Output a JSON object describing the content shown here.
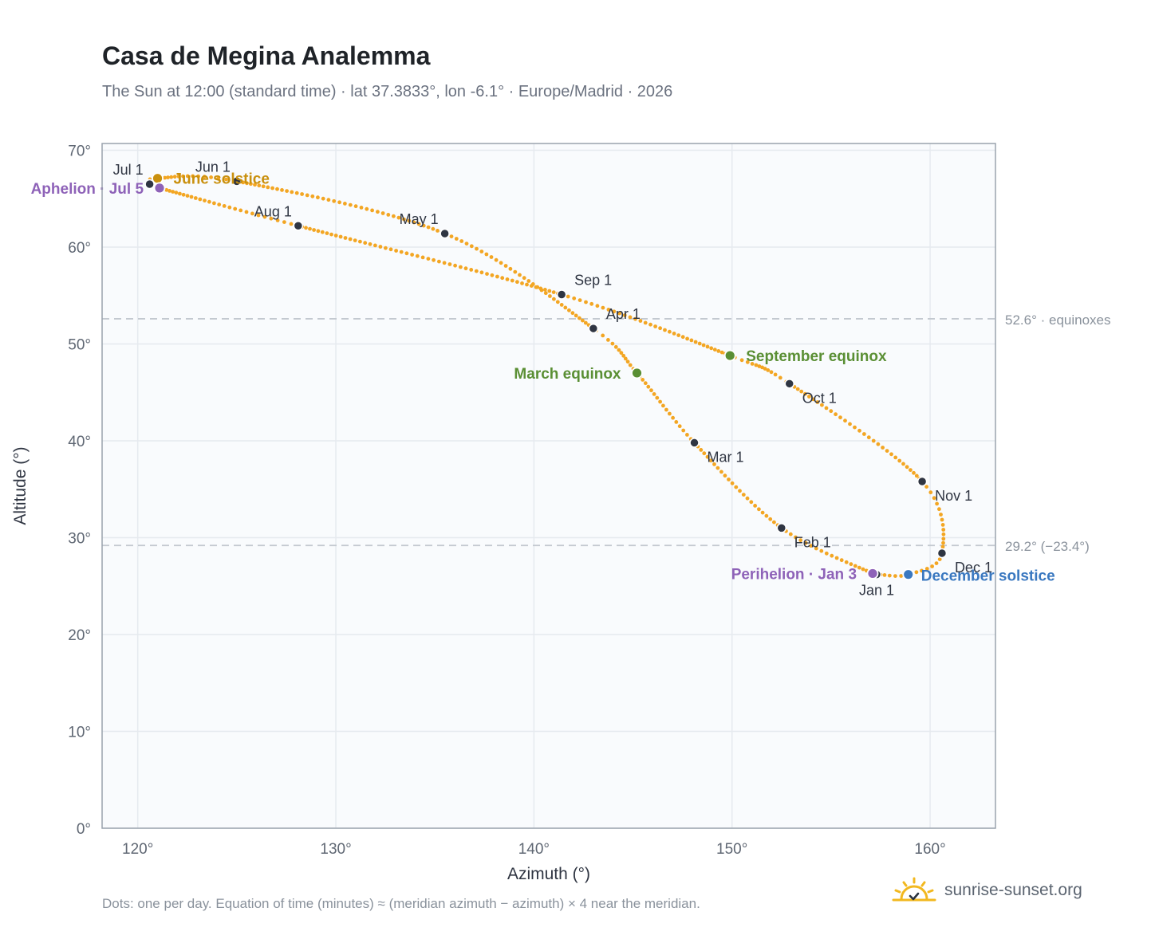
{
  "header": {
    "title": "Casa de Megina Analemma",
    "subtitle": "The Sun at 12:00 (standard time) · lat 37.3833°, lon -6.1° · Europe/Madrid · 2026"
  },
  "footer": {
    "note": "Dots: one per day. Equation of time (minutes) ≈ (meridian azimuth − azimuth) × 4 near the meridian.",
    "brand": "sunrise-sunset.org",
    "brand_icon": "sun-icon"
  },
  "colors": {
    "curve": "#f3a623",
    "month_dot": "#2f3542",
    "equinox": "#5a8f34",
    "june_solstice": "#c9900e",
    "december_solstice": "#3a78c0",
    "apsis": "#8e62b8",
    "reference_line": "#c3c9d0",
    "plot_background": "#f9fbfd",
    "grid": "#e6eaef"
  },
  "chart_data": {
    "type": "scatter",
    "xlabel": "Azimuth (°)",
    "ylabel": "Altitude (°)",
    "xlim": [
      118.2,
      163.3
    ],
    "ylim": [
      0,
      70.7
    ],
    "xticks": [
      120,
      130,
      140,
      150,
      160
    ],
    "yticks": [
      0,
      10,
      20,
      30,
      40,
      50,
      60,
      70
    ],
    "tick_suffix": "°",
    "grid": true,
    "keypoints": [
      {
        "date": "Jan 1",
        "az": 157.3,
        "alt": 26.2
      },
      {
        "date": "Jan 3",
        "az": 157.1,
        "alt": 26.3
      },
      {
        "date": "Feb 1",
        "az": 152.5,
        "alt": 31.0
      },
      {
        "date": "Mar 1",
        "az": 148.1,
        "alt": 39.8
      },
      {
        "date": "Mar 20",
        "az": 145.2,
        "alt": 47.0
      },
      {
        "date": "Apr 1",
        "az": 143.0,
        "alt": 51.6
      },
      {
        "date": "May 1",
        "az": 135.5,
        "alt": 61.4
      },
      {
        "date": "Jun 1",
        "az": 125.0,
        "alt": 66.8
      },
      {
        "date": "Jun 21",
        "az": 121.0,
        "alt": 67.1
      },
      {
        "date": "Jul 1",
        "az": 120.6,
        "alt": 66.5
      },
      {
        "date": "Jul 5",
        "az": 121.1,
        "alt": 66.1
      },
      {
        "date": "Aug 1",
        "az": 128.1,
        "alt": 62.2
      },
      {
        "date": "Sep 1",
        "az": 141.4,
        "alt": 55.1
      },
      {
        "date": "Sep 23",
        "az": 149.9,
        "alt": 48.8
      },
      {
        "date": "Oct 1",
        "az": 152.9,
        "alt": 45.9
      },
      {
        "date": "Nov 1",
        "az": 159.6,
        "alt": 35.8
      },
      {
        "date": "Dec 1",
        "az": 160.6,
        "alt": 28.4
      },
      {
        "date": "Dec 21",
        "az": 158.9,
        "alt": 26.2
      },
      {
        "date": "Dec 31",
        "az": 157.4,
        "alt": 26.2
      }
    ],
    "month_markers": [
      {
        "label": "Jan 1",
        "az": 157.3,
        "alt": 26.2,
        "anchor": "below"
      },
      {
        "label": "Feb 1",
        "az": 152.5,
        "alt": 31.0,
        "anchor": "right-below"
      },
      {
        "label": "Mar 1",
        "az": 148.1,
        "alt": 39.8,
        "anchor": "right-below"
      },
      {
        "label": "Apr 1",
        "az": 143.0,
        "alt": 51.6,
        "anchor": "right-above"
      },
      {
        "label": "May 1",
        "az": 135.5,
        "alt": 61.4,
        "anchor": "left-above"
      },
      {
        "label": "Jun 1",
        "az": 125.0,
        "alt": 66.8,
        "anchor": "left-above"
      },
      {
        "label": "Jul 1",
        "az": 120.6,
        "alt": 66.5,
        "anchor": "left-above"
      },
      {
        "label": "Aug 1",
        "az": 128.1,
        "alt": 62.2,
        "anchor": "left-above"
      },
      {
        "label": "Sep 1",
        "az": 141.4,
        "alt": 55.1,
        "anchor": "right-above"
      },
      {
        "label": "Oct 1",
        "az": 152.9,
        "alt": 45.9,
        "anchor": "right-below"
      },
      {
        "label": "Nov 1",
        "az": 159.6,
        "alt": 35.8,
        "anchor": "right-below"
      },
      {
        "label": "Dec 1",
        "az": 160.6,
        "alt": 28.4,
        "anchor": "right-below"
      }
    ],
    "events": [
      {
        "label": "June solstice",
        "az": 121.0,
        "alt": 67.1,
        "color": "#c9900e",
        "anchor": "right"
      },
      {
        "label": "Aphelion · Jul 5",
        "az": 121.1,
        "alt": 66.1,
        "color": "#8e62b8",
        "anchor": "left"
      },
      {
        "label": "March equinox",
        "az": 145.2,
        "alt": 47.0,
        "color": "#5a8f34",
        "anchor": "left"
      },
      {
        "label": "September equinox",
        "az": 149.9,
        "alt": 48.8,
        "color": "#5a8f34",
        "anchor": "right"
      },
      {
        "label": "Perihelion · Jan 3",
        "az": 157.1,
        "alt": 26.3,
        "color": "#8e62b8",
        "anchor": "left"
      },
      {
        "label": "December solstice",
        "az": 158.9,
        "alt": 26.2,
        "color": "#3a78c0",
        "anchor": "right-below"
      }
    ],
    "reference_lines": [
      {
        "alt": 52.6,
        "label": "52.6° · equinoxes"
      },
      {
        "alt": 29.2,
        "label": "29.2° (−23.4°)"
      }
    ]
  }
}
